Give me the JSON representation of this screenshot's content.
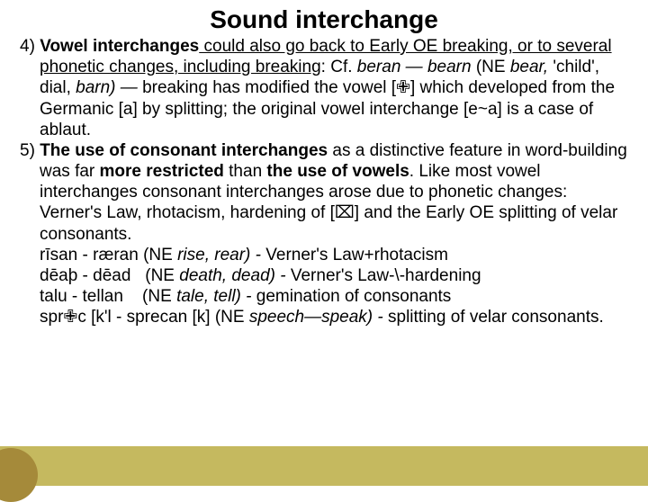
{
  "title": "Sound interchange",
  "item4_lead": "4) ",
  "item4_bold": "Vowel interchanges",
  "item4_u1": " could also go back to Early OE breaking, or to several phonetic changes, including breaking",
  "item4_after_u": ": Cf. ",
  "item4_i1": "beran — bearn ",
  "item4_plain1": "(NE ",
  "item4_i2": "bear, ",
  "item4_plain2": "'child', dial, ",
  "item4_i3": "barn) — ",
  "item4_plain3": "breaking has modified the vowel [✙] which developed from the Germanic [a] by splitting; the original vowel interchange [e~a] is a case of ablaut.",
  "item5_lead": "5) ",
  "item5_bold1": "The use",
  "item5_mid1": " ",
  "item5_bold2": "of consonant interchanges",
  "item5_plain1": " as a distinctive feature in word-building was far ",
  "item5_bold3": "more restricted",
  "item5_plain2": " than ",
  "item5_bold4": "the use of vowels",
  "item5_plain3": ". Like most vowel interchanges consonant interchanges arose due to phonetic changes: Verner's Law, rhotacism, hardening of [⌧] and the Early OE splitting of velar consonants.",
  "line_a1": "rīsan - ræran (NE ",
  "line_a_i": "rise, rear) - ",
  "line_a2": "Verner's Law+rhotacism",
  "line_b1": "dēaþ - dēad   (NE ",
  "line_b_i": "death, dead) - ",
  "line_b2": "Verner's Law-\\-hardening",
  "line_c1": "talu - tellan    (NE ",
  "line_c_i": "tale, tell) - ",
  "line_c2": "gemination of consonants",
  "line_d1": "spr✙c [k'l - sprecan [k] (NE ",
  "line_d_i": "speech—speak) - ",
  "line_d2": "splitting of velar consonants."
}
